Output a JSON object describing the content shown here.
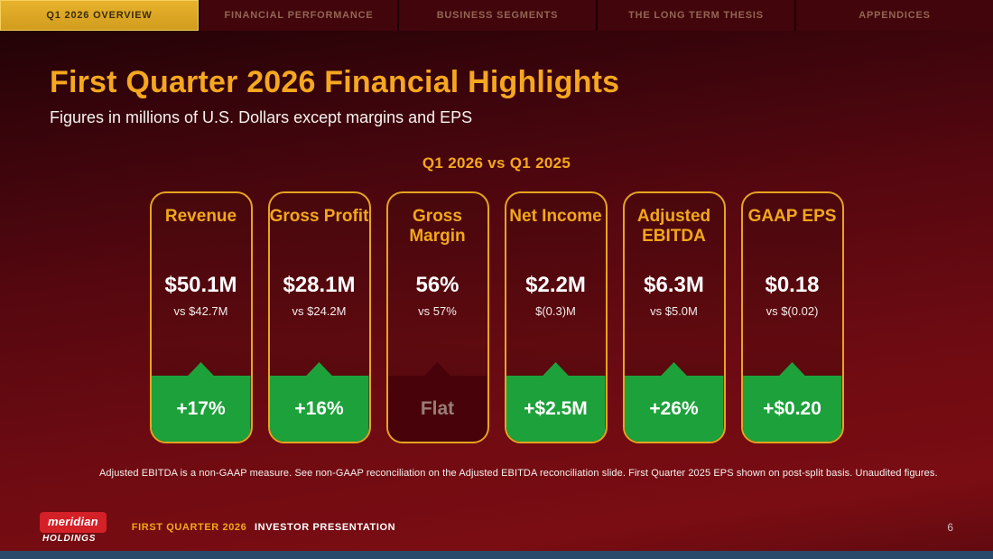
{
  "nav": {
    "tabs": [
      {
        "label": "Q1 2026 OVERVIEW",
        "active": true
      },
      {
        "label": "FINANCIAL PERFORMANCE",
        "active": false
      },
      {
        "label": "BUSINESS SEGMENTS",
        "active": false
      },
      {
        "label": "THE LONG TERM THESIS",
        "active": false
      },
      {
        "label": "APPENDICES",
        "active": false
      }
    ]
  },
  "main": {
    "title": "First Quarter 2026 Financial Highlights",
    "subtitle": "Figures in millions of U.S. Dollars except margins and EPS",
    "comparison_heading": "Q1 2026 vs Q1 2025",
    "cards": [
      {
        "title": "Revenue",
        "value": "$50.1M",
        "comparison": "vs $42.7M",
        "delta": "+17%",
        "delta_type": "positive"
      },
      {
        "title": "Gross Profit",
        "value": "$28.1M",
        "comparison": "vs $24.2M",
        "delta": "+16%",
        "delta_type": "positive"
      },
      {
        "title": "Gross Margin",
        "value": "56%",
        "comparison": "vs 57%",
        "delta": "Flat",
        "delta_type": "neutral"
      },
      {
        "title": "Net Income",
        "value": "$2.2M",
        "comparison": "$(0.3)M",
        "delta": "+$2.5M",
        "delta_type": "positive"
      },
      {
        "title": "Adjusted EBITDA",
        "value": "$6.3M",
        "comparison": "vs $5.0M",
        "delta": "+26%",
        "delta_type": "positive"
      },
      {
        "title": "GAAP EPS",
        "value": "$0.18",
        "comparison": "vs $(0.02)",
        "delta": "+$0.20",
        "delta_type": "positive"
      }
    ],
    "footnote": "Adjusted EBITDA is a non-GAAP measure. See non-GAAP reconciliation on the Adjusted EBITDA reconciliation slide. First Quarter 2025 EPS shown on post-split basis. Unaudited figures."
  },
  "footer": {
    "logo_word": "meridian",
    "logo_sub": "HOLDINGS",
    "caption_highlight": "FIRST QUARTER 2026",
    "caption_rest": "INVESTOR PRESENTATION",
    "page_number": "6"
  },
  "colors": {
    "gold_accent": "#f2a71b",
    "positive_green": "#1da13b",
    "neutral_badge": "#470309",
    "slide_red": "#6e0b12",
    "nav_inactive": "#42050b",
    "logo_red": "#d42027",
    "bottom_strip_blue": "#2a4a6b"
  }
}
